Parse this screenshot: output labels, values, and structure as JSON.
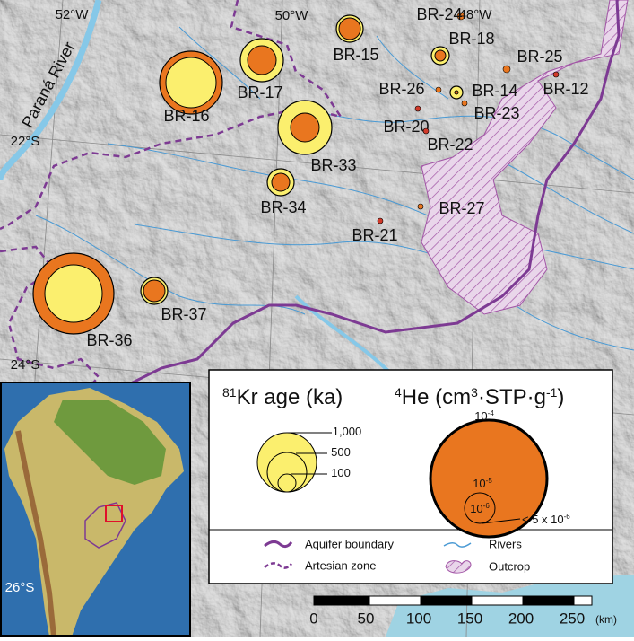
{
  "map": {
    "lon_labels": [
      "52°W",
      "50°W",
      "48°W"
    ],
    "lat_labels": [
      "22°S",
      "24°S",
      "26°S"
    ],
    "river_label": "Paraná River",
    "wells": [
      "BR-24",
      "BR-18",
      "BR-15",
      "BR-25",
      "BR-17",
      "BR-26",
      "BR-14",
      "BR-12",
      "BR-16",
      "BR-23",
      "BR-20",
      "BR-22",
      "BR-33",
      "BR-34",
      "BR-27",
      "BR-21",
      "BR-37",
      "BR-36"
    ]
  },
  "legend": {
    "kr_title": [
      {
        "sup": "81"
      },
      {
        "text": "Kr age (ka)"
      }
    ],
    "kr_sizes": [
      [
        {
          "text": "1,000"
        }
      ],
      [
        {
          "text": "500"
        }
      ],
      [
        {
          "text": "100"
        }
      ]
    ],
    "he_title": [
      {
        "sup": "4"
      },
      {
        "text": "He (cm"
      },
      {
        "sup": "3"
      },
      {
        "text": "·STP·g"
      },
      {
        "sup": "-1"
      },
      {
        "text": ")"
      }
    ],
    "he_sizes": [
      [
        {
          "text": "10"
        },
        {
          "sup": "-4"
        }
      ],
      [
        {
          "text": "10"
        },
        {
          "sup": "-5"
        }
      ],
      [
        {
          "text": "10"
        },
        {
          "sup": "-6"
        }
      ],
      [
        {
          "text": "< 5 x 10"
        },
        {
          "sup": "-6"
        }
      ]
    ],
    "items": [
      "Aquifer boundary",
      "Artesian zone",
      "Rivers",
      "Outcrop"
    ]
  },
  "scale_bar": {
    "labels": [
      "0",
      "50",
      "100",
      "150",
      "200",
      "250"
    ],
    "unit": "(km)"
  }
}
